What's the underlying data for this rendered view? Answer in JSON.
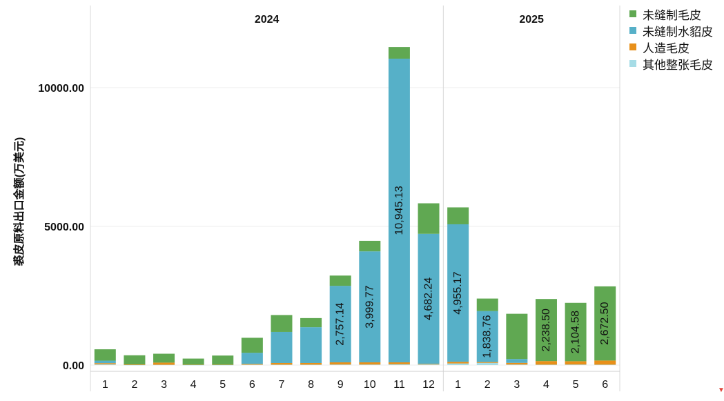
{
  "chart_data": {
    "type": "bar",
    "stacked": true,
    "ylabel": "裘皮原料出口金额(万美元)",
    "ylim": [
      -230,
      12500
    ],
    "yticks": [
      0,
      5000,
      10000
    ],
    "ytick_labels": [
      "0.00",
      "5000.00",
      "10000.00"
    ],
    "grid": true,
    "legend_position": "right",
    "groups": [
      {
        "label": "2024",
        "categories": [
          "1",
          "2",
          "3",
          "4",
          "5",
          "6",
          "7",
          "8",
          "9",
          "10",
          "11",
          "12"
        ]
      },
      {
        "label": "2025",
        "categories": [
          "1",
          "2",
          "3",
          "4",
          "5",
          "6"
        ]
      }
    ],
    "series": [
      {
        "name": "其他整张毛皮",
        "color": "#a6dce6",
        "values": [
          30,
          5,
          10,
          5,
          5,
          15,
          15,
          15,
          20,
          20,
          30,
          30,
          60,
          80,
          20,
          15,
          20,
          15
        ]
      },
      {
        "name": "人造毛皮",
        "color": "#e8901a",
        "values": [
          40,
          20,
          80,
          10,
          10,
          30,
          60,
          60,
          80,
          80,
          70,
          20,
          60,
          30,
          60,
          130,
          120,
          150
        ]
      },
      {
        "name": "未缝制水貂皮",
        "color": "#56b0c8",
        "values": [
          90,
          0,
          0,
          0,
          0,
          400,
          1120,
          1290,
          2757.14,
          3999.77,
          10945.13,
          4682.24,
          4955.17,
          1838.76,
          140,
          0,
          0,
          0
        ]
      },
      {
        "name": "未缝制毛皮",
        "color": "#60a852",
        "values": [
          410,
          330,
          320,
          220,
          330,
          540,
          610,
          330,
          370,
          380,
          420,
          1100,
          610,
          450,
          1630,
          2238.5,
          2104.58,
          2672.5
        ]
      }
    ],
    "data_labels": [
      {
        "series": "未缝制水貂皮",
        "index": 8,
        "text": "2,757.14"
      },
      {
        "series": "未缝制水貂皮",
        "index": 9,
        "text": "3,999.77"
      },
      {
        "series": "未缝制水貂皮",
        "index": 10,
        "text": "10,945.13"
      },
      {
        "series": "未缝制水貂皮",
        "index": 11,
        "text": "4,682.24"
      },
      {
        "series": "未缝制水貂皮",
        "index": 12,
        "text": "4,955.17"
      },
      {
        "series": "未缝制水貂皮",
        "index": 13,
        "text": "1,838.76"
      },
      {
        "series": "未缝制毛皮",
        "index": 15,
        "text": "2,238.50"
      },
      {
        "series": "未缝制毛皮",
        "index": 16,
        "text": "2,104.58"
      },
      {
        "series": "未缝制毛皮",
        "index": 17,
        "text": "2,672.50"
      }
    ]
  },
  "legend": {
    "items": [
      {
        "name": "未缝制毛皮",
        "color": "#60a852"
      },
      {
        "name": "未缝制水貂皮",
        "color": "#56b0c8"
      },
      {
        "name": "人造毛皮",
        "color": "#e8901a"
      },
      {
        "name": "其他整张毛皮",
        "color": "#a6dce6"
      }
    ]
  },
  "icons": {
    "corner": "triangle-down-icon"
  }
}
